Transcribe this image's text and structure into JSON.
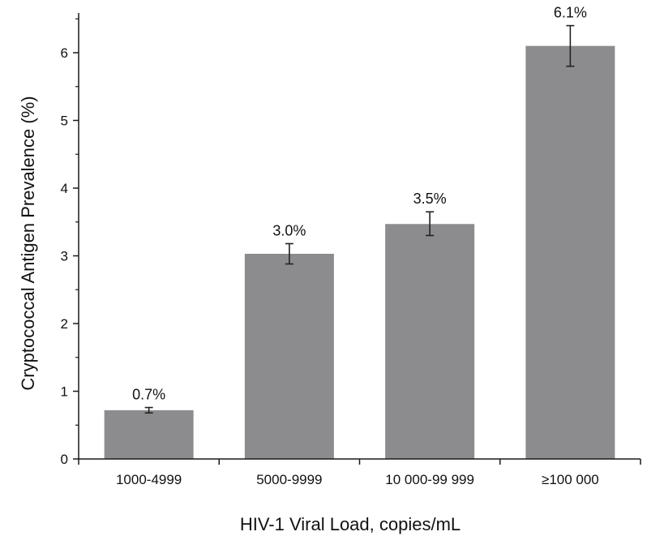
{
  "chart_data": {
    "type": "bar",
    "categories": [
      "1000-4999",
      "5000-9999",
      "10 000-99 999",
      "≥100 000"
    ],
    "values": [
      0.72,
      3.03,
      3.47,
      6.1
    ],
    "error_low": [
      0.68,
      2.88,
      3.3,
      5.8
    ],
    "error_high": [
      0.76,
      3.18,
      3.65,
      6.4
    ],
    "data_labels": [
      "0.7%",
      "3.0%",
      "3.5%",
      "6.1%"
    ],
    "xlabel": "HIV-1 Viral Load, copies/mL",
    "ylabel": "Cryptococcal Antigen Prevalence (%)",
    "ylim": [
      0,
      6.6
    ],
    "yticks": [
      0,
      1,
      2,
      3,
      4,
      5,
      6
    ],
    "grid": false,
    "bar_color": "#8c8c8f",
    "axis_color": "#1a1a1a"
  }
}
